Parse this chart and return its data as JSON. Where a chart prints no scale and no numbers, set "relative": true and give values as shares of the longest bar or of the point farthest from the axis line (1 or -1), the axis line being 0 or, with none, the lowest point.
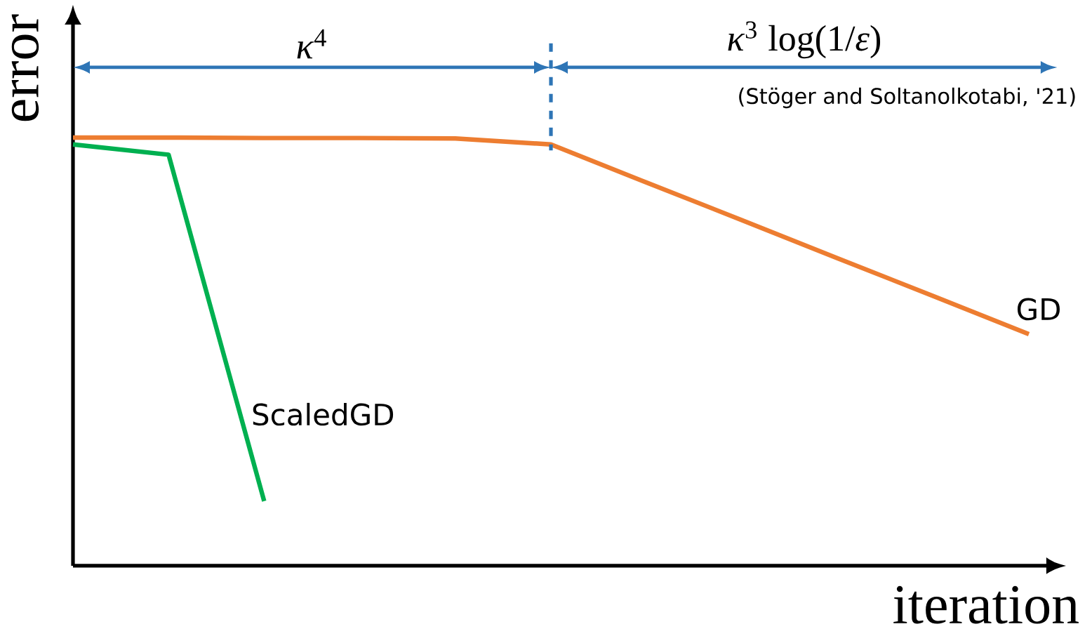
{
  "chart_data": {
    "type": "line",
    "relative": true,
    "xlabel": "iteration",
    "ylabel": "error",
    "marker": "none",
    "line_style": "solid",
    "categories": [
      null,
      null,
      null,
      null,
      null,
      null,
      null,
      null,
      null,
      null,
      null
    ],
    "series": [
      {
        "name": "ScaledGD",
        "color": "#00b050",
        "values": [
          0.984,
          0.96,
          0.151,
          null,
          null,
          null,
          null,
          null,
          null,
          null,
          null
        ]
      },
      {
        "name": "GD",
        "color": "#ed7d31",
        "values": [
          1.0,
          1.0,
          0.999,
          0.999,
          0.998,
          0.984,
          0.895,
          0.807,
          0.718,
          0.63,
          0.541
        ]
      }
    ],
    "annotations": [
      "*κ*$^{4}$",
      "*κ*$^{3}$ log(1/*ε*)",
      "(Stöger and Soltanolkotabi, '21)"
    ]
  }
}
